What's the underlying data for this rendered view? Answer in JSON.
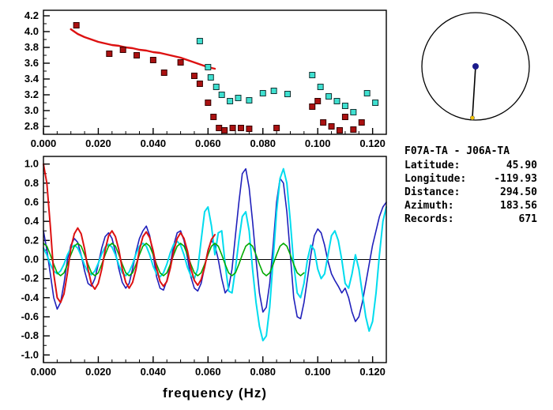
{
  "station_info": {
    "pair": "F07A-TA - J06A-TA",
    "rows": [
      {
        "label": "Latitude:",
        "value": "45.90"
      },
      {
        "label": "Longitude:",
        "value": "-119.93"
      },
      {
        "label": "Distance:",
        "value": "294.50"
      },
      {
        "label": "Azimuth:",
        "value": "183.56"
      },
      {
        "label": "Records:",
        "value": "671"
      }
    ]
  },
  "azimuth_diagram": {
    "azimuth_deg": 183.56,
    "circle_color": "#000000",
    "line_color": "#000000",
    "center_dot_color": "#1a1a8c",
    "end_dot_color": "#f5c400"
  },
  "chart_data": [
    {
      "type": "scatter",
      "title": "",
      "xlabel": "",
      "ylabel": "",
      "xlim": [
        0,
        0.125
      ],
      "ylim": [
        2.7,
        4.27
      ],
      "x_ticks": [
        0,
        0.02,
        0.04,
        0.06,
        0.08,
        0.1,
        0.12
      ],
      "x_tick_labels": [
        "0.000",
        "0.020",
        "0.040",
        "0.060",
        "0.080",
        "0.100",
        "0.120"
      ],
      "x_minor_step": 0.005,
      "y_ticks": [
        2.8,
        3.0,
        3.2,
        3.4,
        3.6,
        3.8,
        4.0,
        4.2
      ],
      "y_tick_labels": [
        "2.8",
        "3.0",
        "3.2",
        "3.4",
        "3.6",
        "3.8",
        "4.0",
        "4.2"
      ],
      "y_minor_step": 0.1,
      "zero_line": false,
      "series": [
        {
          "name": "reference-dispersion-curve",
          "mode": "line",
          "color": "#dd1111",
          "width": 2.4,
          "points": [
            [
              0.01,
              4.03
            ],
            [
              0.0125,
              3.97
            ],
            [
              0.015,
              3.93
            ],
            [
              0.0175,
              3.9
            ],
            [
              0.02,
              3.87
            ],
            [
              0.0225,
              3.85
            ],
            [
              0.025,
              3.83
            ],
            [
              0.0275,
              3.82
            ],
            [
              0.03,
              3.8
            ],
            [
              0.0325,
              3.79
            ],
            [
              0.035,
              3.77
            ],
            [
              0.0375,
              3.76
            ],
            [
              0.04,
              3.74
            ],
            [
              0.0425,
              3.73
            ],
            [
              0.045,
              3.71
            ],
            [
              0.0475,
              3.69
            ],
            [
              0.05,
              3.67
            ],
            [
              0.0525,
              3.64
            ],
            [
              0.055,
              3.61
            ],
            [
              0.0575,
              3.58
            ],
            [
              0.06,
              3.55
            ],
            [
              0.0625,
              3.53
            ]
          ]
        },
        {
          "name": "cyan-velocity-measurements",
          "mode": "scatter",
          "color": "#3fe0d0",
          "edge": "#123333",
          "points": [
            [
              0.057,
              3.88
            ],
            [
              0.06,
              3.55
            ],
            [
              0.061,
              3.42
            ],
            [
              0.063,
              3.3
            ],
            [
              0.065,
              3.2
            ],
            [
              0.068,
              3.12
            ],
            [
              0.071,
              3.16
            ],
            [
              0.075,
              3.13
            ],
            [
              0.08,
              3.22
            ],
            [
              0.084,
              3.25
            ],
            [
              0.089,
              3.21
            ],
            [
              0.098,
              3.45
            ],
            [
              0.101,
              3.3
            ],
            [
              0.104,
              3.18
            ],
            [
              0.107,
              3.12
            ],
            [
              0.11,
              3.06
            ],
            [
              0.113,
              2.98
            ],
            [
              0.118,
              3.22
            ],
            [
              0.121,
              3.1
            ]
          ]
        },
        {
          "name": "red-velocity-measurements",
          "mode": "scatter",
          "color": "#aa1111",
          "edge": "#330000",
          "points": [
            [
              0.012,
              4.08
            ],
            [
              0.024,
              3.72
            ],
            [
              0.029,
              3.77
            ],
            [
              0.034,
              3.7
            ],
            [
              0.04,
              3.64
            ],
            [
              0.044,
              3.48
            ],
            [
              0.05,
              3.61
            ],
            [
              0.055,
              3.44
            ],
            [
              0.057,
              3.34
            ],
            [
              0.06,
              3.1
            ],
            [
              0.062,
              2.92
            ],
            [
              0.064,
              2.78
            ],
            [
              0.066,
              2.75
            ],
            [
              0.069,
              2.78
            ],
            [
              0.072,
              2.78
            ],
            [
              0.075,
              2.77
            ],
            [
              0.085,
              2.78
            ],
            [
              0.098,
              3.05
            ],
            [
              0.1,
              3.12
            ],
            [
              0.102,
              2.85
            ],
            [
              0.105,
              2.8
            ],
            [
              0.108,
              2.75
            ],
            [
              0.11,
              2.92
            ],
            [
              0.113,
              2.76
            ],
            [
              0.116,
              2.85
            ]
          ]
        }
      ]
    },
    {
      "type": "line",
      "title": "",
      "xlabel": "frequency (Hz)",
      "ylabel": "",
      "xlim": [
        0,
        0.125
      ],
      "ylim": [
        -1.08,
        1.08
      ],
      "x_ticks": [
        0,
        0.02,
        0.04,
        0.06,
        0.08,
        0.1,
        0.12
      ],
      "x_tick_labels": [
        "0.000",
        "0.020",
        "0.040",
        "0.060",
        "0.080",
        "0.100",
        "0.120"
      ],
      "x_minor_step": 0.005,
      "y_ticks": [
        -1.0,
        -0.8,
        -0.6,
        -0.4,
        -0.2,
        0.0,
        0.2,
        0.4,
        0.6,
        0.8,
        1.0
      ],
      "y_tick_labels": [
        "-1.0",
        "-0.8",
        "-0.6",
        "-0.4",
        "-0.2",
        "0.0",
        "0.2",
        "0.4",
        "0.6",
        "0.8",
        "1.0"
      ],
      "y_minor_step": 0.1,
      "zero_line": true,
      "series": [
        {
          "name": "observed-waveform-blue",
          "mode": "line",
          "color": "#2020bb",
          "width": 1.6,
          "x_start": 0,
          "dx": 0.00125,
          "values": [
            0.3,
            0.1,
            -0.15,
            -0.4,
            -0.52,
            -0.45,
            -0.25,
            0.0,
            0.15,
            0.22,
            0.18,
            0.05,
            -0.12,
            -0.25,
            -0.28,
            -0.2,
            -0.05,
            0.12,
            0.24,
            0.28,
            0.22,
            0.08,
            -0.1,
            -0.24,
            -0.3,
            -0.25,
            -0.1,
            0.08,
            0.22,
            0.3,
            0.35,
            0.25,
            0.05,
            -0.18,
            -0.3,
            -0.32,
            -0.22,
            -0.05,
            0.15,
            0.28,
            0.3,
            0.2,
            0.02,
            -0.18,
            -0.3,
            -0.33,
            -0.25,
            -0.08,
            0.1,
            0.2,
            0.15,
            0.0,
            -0.2,
            -0.35,
            -0.3,
            -0.1,
            0.25,
            0.6,
            0.9,
            0.95,
            0.75,
            0.4,
            0.0,
            -0.35,
            -0.55,
            -0.5,
            -0.25,
            0.15,
            0.6,
            0.85,
            0.8,
            0.5,
            0.05,
            -0.4,
            -0.6,
            -0.62,
            -0.45,
            -0.2,
            0.05,
            0.25,
            0.32,
            0.28,
            0.15,
            -0.02,
            -0.15,
            -0.22,
            -0.28,
            -0.35,
            -0.3,
            -0.4,
            -0.55,
            -0.65,
            -0.6,
            -0.45,
            -0.25,
            -0.05,
            0.15,
            0.3,
            0.45,
            0.55,
            0.6
          ]
        },
        {
          "name": "observed-waveform-cyan",
          "mode": "line",
          "color": "#00dcee",
          "width": 2.0,
          "x_start": 0,
          "dx": 0.00125,
          "values": [
            0.12,
            0.05,
            -0.05,
            -0.12,
            -0.15,
            -0.12,
            -0.05,
            0.05,
            0.12,
            0.15,
            0.12,
            0.04,
            -0.06,
            -0.13,
            -0.16,
            -0.12,
            -0.04,
            0.06,
            0.13,
            0.16,
            0.13,
            0.05,
            -0.06,
            -0.14,
            -0.17,
            -0.13,
            -0.05,
            0.06,
            0.14,
            0.17,
            0.14,
            0.05,
            -0.07,
            -0.15,
            -0.18,
            -0.14,
            -0.05,
            0.07,
            0.16,
            0.19,
            0.15,
            0.05,
            -0.08,
            -0.17,
            -0.2,
            -0.1,
            0.2,
            0.5,
            0.55,
            0.35,
            0.05,
            0.28,
            0.3,
            -0.05,
            -0.33,
            -0.35,
            -0.1,
            0.2,
            0.45,
            0.5,
            0.3,
            -0.1,
            -0.45,
            -0.7,
            -0.85,
            -0.8,
            -0.5,
            0.0,
            0.5,
            0.85,
            0.95,
            0.8,
            0.4,
            -0.05,
            -0.35,
            -0.4,
            -0.25,
            0.0,
            0.15,
            0.1,
            -0.1,
            -0.2,
            -0.15,
            0.05,
            0.25,
            0.3,
            0.2,
            0.0,
            -0.25,
            -0.3,
            -0.15,
            0.05,
            -0.1,
            -0.35,
            -0.6,
            -0.75,
            -0.65,
            -0.35,
            0.05,
            0.4,
            0.55
          ]
        },
        {
          "name": "synthetic-waveform-green",
          "mode": "line",
          "color": "#00aa00",
          "width": 1.6,
          "x_start": 0,
          "dx": 0.00125,
          "values": [
            0.17,
            0.14,
            0.05,
            -0.05,
            -0.14,
            -0.17,
            -0.14,
            -0.05,
            0.05,
            0.14,
            0.17,
            0.14,
            0.05,
            -0.05,
            -0.14,
            -0.17,
            -0.14,
            -0.05,
            0.05,
            0.14,
            0.17,
            0.14,
            0.05,
            -0.05,
            -0.14,
            -0.17,
            -0.14,
            -0.05,
            0.05,
            0.14,
            0.17,
            0.14,
            0.05,
            -0.05,
            -0.14,
            -0.17,
            -0.14,
            -0.05,
            0.05,
            0.14,
            0.17,
            0.14,
            0.05,
            -0.05,
            -0.14,
            -0.17,
            -0.14,
            -0.05,
            0.05,
            0.14,
            0.17,
            0.14,
            0.05,
            -0.05,
            -0.14,
            -0.17,
            -0.14,
            -0.05,
            0.05,
            0.14,
            0.17,
            0.14,
            0.05,
            -0.05,
            -0.14,
            -0.17,
            -0.14,
            -0.05,
            0.05,
            0.14,
            0.17,
            0.14,
            0.05,
            -0.05,
            -0.14,
            -0.17,
            -0.14
          ]
        },
        {
          "name": "reference-waveform-red",
          "mode": "line",
          "color": "#dd1111",
          "width": 2.0,
          "x_start": 0,
          "dx": 0.00125,
          "values": [
            1.0,
            0.8,
            0.35,
            -0.15,
            -0.4,
            -0.45,
            -0.36,
            -0.14,
            0.12,
            0.27,
            0.33,
            0.27,
            0.11,
            -0.1,
            -0.26,
            -0.31,
            -0.25,
            -0.1,
            0.1,
            0.25,
            0.3,
            0.24,
            0.1,
            -0.1,
            -0.24,
            -0.3,
            -0.24,
            -0.1,
            0.1,
            0.24,
            0.29,
            0.23,
            0.09,
            -0.09,
            -0.23,
            -0.28,
            -0.23,
            -0.09,
            0.09,
            0.22,
            0.28,
            0.22,
            0.09,
            -0.09,
            -0.22,
            -0.27,
            -0.21,
            -0.08,
            0.09,
            0.21,
            0.26
          ]
        }
      ]
    }
  ]
}
